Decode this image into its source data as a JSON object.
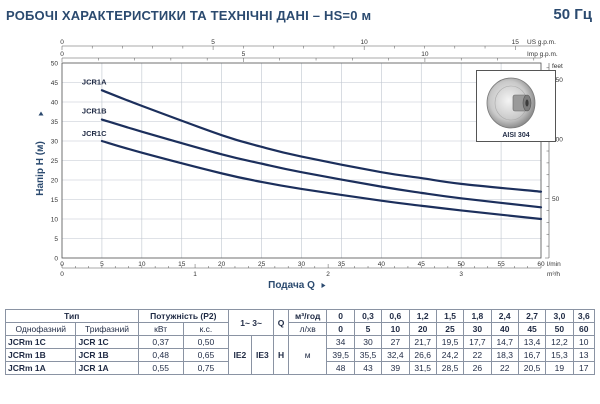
{
  "title": "РОБОЧІ ХАРАКТЕРИСТИКИ ТА ТЕХНІЧНІ ДАНІ  –  HS=0 м",
  "frequency": "50 Гц",
  "inset_label": "AISI 304",
  "chart_data": {
    "type": "line",
    "ylabel": "Напір H (м)",
    "xlabel": "Подача Q",
    "x_unit": "l/min",
    "y_unit_right": "feet",
    "xlim": [
      0,
      60
    ],
    "ylim": [
      0,
      50
    ],
    "grid": true,
    "x_ticks": [
      0,
      5,
      10,
      15,
      20,
      25,
      30,
      35,
      40,
      45,
      50,
      55,
      60
    ],
    "y_ticks": [
      0,
      5,
      10,
      15,
      20,
      25,
      30,
      35,
      40,
      45,
      50
    ],
    "top_axis_usgpm": {
      "unit": "US g.p.m.",
      "ticks": [
        0,
        5,
        10,
        15
      ]
    },
    "top_axis_impgpm": {
      "unit": "Imp g.p.m.",
      "ticks": [
        0,
        5,
        10
      ]
    },
    "right_axis_feet": {
      "unit": "feet",
      "ticks": [
        50,
        100,
        150
      ]
    },
    "bottom_axis_m3h": {
      "unit": "m³/h",
      "ticks": [
        0,
        1,
        2,
        3
      ]
    },
    "x": [
      5,
      10,
      20,
      25,
      30,
      40,
      45,
      50,
      60
    ],
    "series": [
      {
        "name": "JCR1A",
        "values": [
          43,
          39,
          31.5,
          28.5,
          26,
          22,
          20.5,
          19,
          17
        ]
      },
      {
        "name": "JCR1B",
        "values": [
          35.5,
          32.4,
          26.6,
          24.2,
          22,
          18.3,
          16.7,
          15.3,
          13
        ]
      },
      {
        "name": "JCR1C",
        "values": [
          30,
          27,
          21.7,
          19.5,
          17.7,
          14.7,
          13.4,
          12.2,
          10
        ]
      }
    ]
  },
  "table": {
    "h_type": "Тип",
    "h_power": "Потужність (P2)",
    "h_single": "Однофазний",
    "h_three": "Трифазний",
    "h_kw": "кВт",
    "h_hp": "к.с.",
    "h_phase": "1~ 3~",
    "h_q": "Q",
    "h_q_unit1": "м³/год",
    "h_q_unit2": "л/хв",
    "h_ie2": "IE2",
    "h_ie3": "IE3",
    "h_h": "H",
    "h_m": "м",
    "q_m3h": [
      "0",
      "0,3",
      "0,6",
      "1,2",
      "1,5",
      "1,8",
      "2,4",
      "2,7",
      "3,0",
      "3,6"
    ],
    "q_lmin": [
      "0",
      "5",
      "10",
      "20",
      "25",
      "30",
      "40",
      "45",
      "50",
      "60"
    ],
    "rows": [
      {
        "single": "JCRm 1C",
        "three": "JCR 1C",
        "kw": "0,37",
        "hp": "0,50",
        "h": [
          "34",
          "30",
          "27",
          "21,7",
          "19,5",
          "17,7",
          "14,7",
          "13,4",
          "12,2",
          "10"
        ]
      },
      {
        "single": "JCRm 1B",
        "three": "JCR 1B",
        "kw": "0,48",
        "hp": "0,65",
        "h": [
          "39,5",
          "35,5",
          "32,4",
          "26,6",
          "24,2",
          "22",
          "18,3",
          "16,7",
          "15,3",
          "13"
        ]
      },
      {
        "single": "JCRm 1A",
        "three": "JCR 1A",
        "kw": "0,55",
        "hp": "0,75",
        "h": [
          "48",
          "43",
          "39",
          "31,5",
          "28,5",
          "26",
          "22",
          "20,5",
          "19",
          "17"
        ]
      }
    ]
  },
  "colors": {
    "curve": "#1c2f5c",
    "grid": "#bfc6cf",
    "title": "#2b4a6f"
  }
}
